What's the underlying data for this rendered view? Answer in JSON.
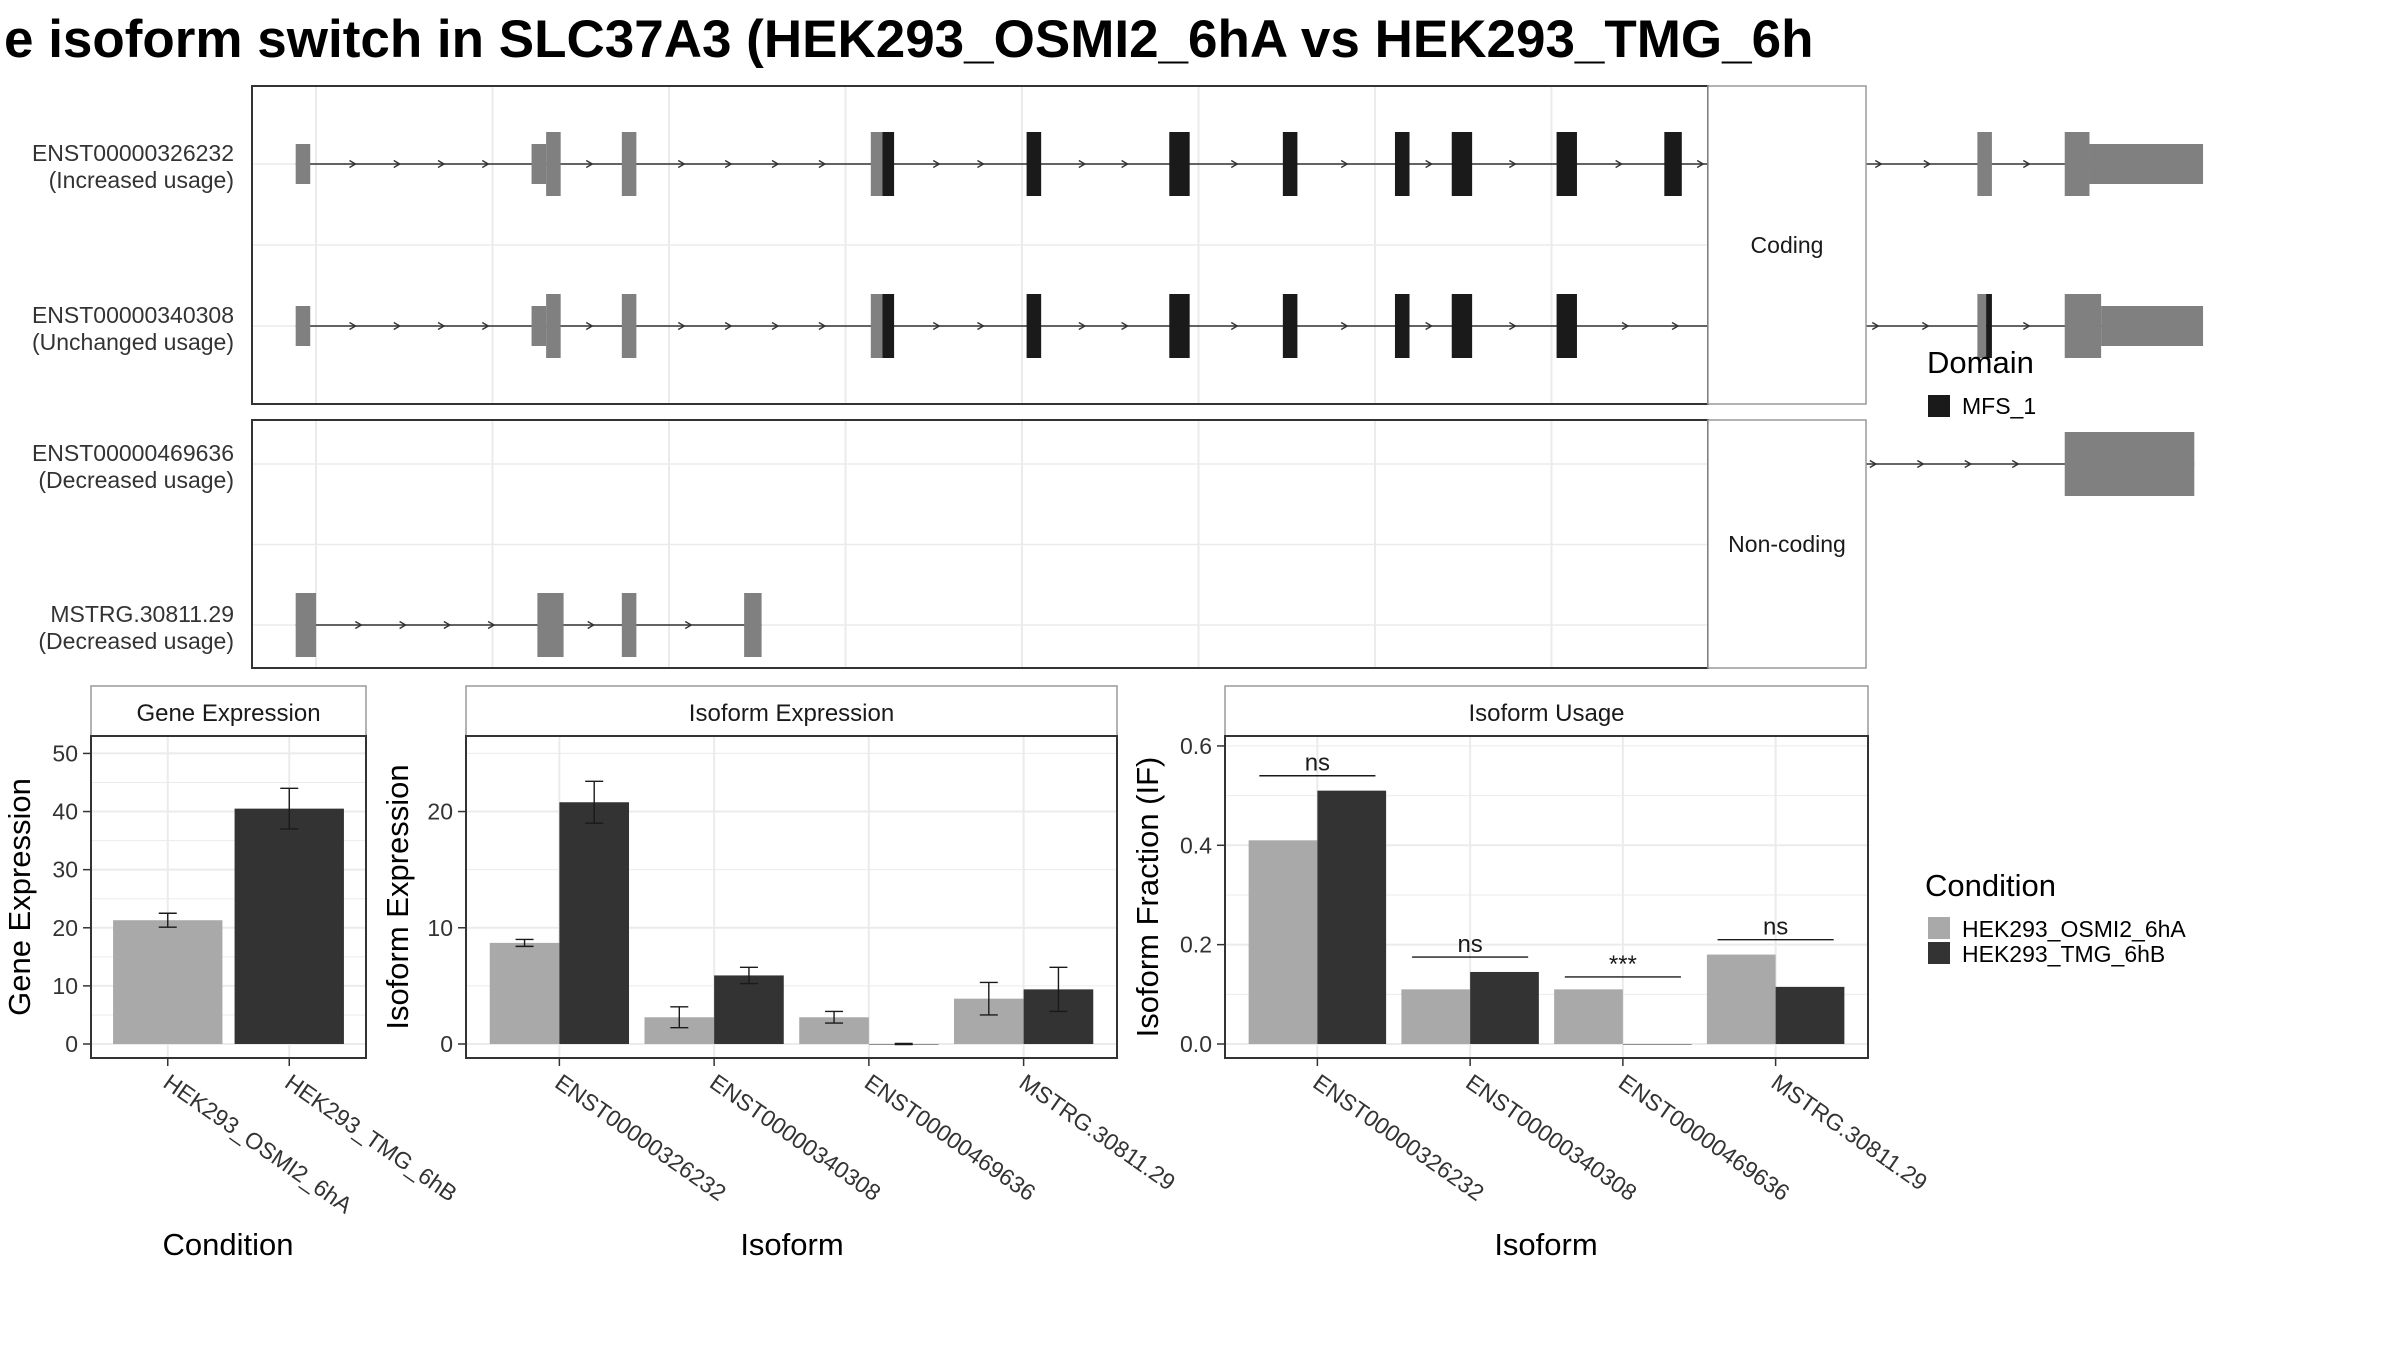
{
  "title": "e isoform switch in SLC37A3 (HEK293_OSMI2_6hA vs HEK293_TMG_6h",
  "colors": {
    "domain": "#1a1a1a",
    "exon": "#808080",
    "cond_a": "#a9a9a9",
    "cond_b": "#333333",
    "grid": "#ebebeb",
    "border": "#333333",
    "strip_border": "#9a9a9a"
  },
  "structure": {
    "genomic_min": 0,
    "genomic_max": 1000,
    "panels": [
      {
        "label": "Coding",
        "isoforms": [
          {
            "id": "ENST00000326232",
            "usage": "(Increased usage)",
            "exons": [
              {
                "s": 30,
                "e": 40,
                "h": "mid"
              },
              {
                "s": 192,
                "e": 202,
                "h": "mid"
              },
              {
                "s": 202,
                "e": 212,
                "h": "full"
              },
              {
                "s": 254,
                "e": 264,
                "h": "full"
              },
              {
                "s": 425,
                "e": 433,
                "h": "full"
              },
              {
                "s": 433,
                "e": 441,
                "h": "full",
                "d": true
              },
              {
                "s": 532,
                "e": 542,
                "h": "full",
                "d": true
              },
              {
                "s": 630,
                "e": 644,
                "h": "full",
                "d": true
              },
              {
                "s": 708,
                "e": 718,
                "h": "full",
                "d": true
              },
              {
                "s": 785,
                "e": 795,
                "h": "full",
                "d": true
              },
              {
                "s": 824,
                "e": 838,
                "h": "full",
                "d": true
              },
              {
                "s": 896,
                "e": 910,
                "h": "full",
                "d": true
              },
              {
                "s": 970,
                "e": 982,
                "h": "full",
                "d": true
              },
              {
                "s": 1010,
                "e": 1019,
                "h": "full",
                "d": true
              },
              {
                "s": 1066,
                "e": 1075,
                "h": "full",
                "d": true
              },
              {
                "s": 1075,
                "e": 1085,
                "h": "full"
              },
              {
                "s": 1185,
                "e": 1195,
                "h": "full"
              },
              {
                "s": 1245,
                "e": 1262,
                "h": "full"
              },
              {
                "s": 1262,
                "e": 1340,
                "h": "mid"
              }
            ]
          },
          {
            "id": "ENST00000340308",
            "usage": "(Unchanged usage)",
            "exons": [
              {
                "s": 30,
                "e": 40,
                "h": "mid"
              },
              {
                "s": 192,
                "e": 202,
                "h": "mid"
              },
              {
                "s": 202,
                "e": 212,
                "h": "full"
              },
              {
                "s": 254,
                "e": 264,
                "h": "full"
              },
              {
                "s": 425,
                "e": 433,
                "h": "full"
              },
              {
                "s": 433,
                "e": 441,
                "h": "full",
                "d": true
              },
              {
                "s": 532,
                "e": 542,
                "h": "full",
                "d": true
              },
              {
                "s": 630,
                "e": 644,
                "h": "full",
                "d": true
              },
              {
                "s": 708,
                "e": 718,
                "h": "full",
                "d": true
              },
              {
                "s": 785,
                "e": 795,
                "h": "full",
                "d": true
              },
              {
                "s": 824,
                "e": 838,
                "h": "full",
                "d": true
              },
              {
                "s": 896,
                "e": 910,
                "h": "full",
                "d": true
              },
              {
                "s": 1185,
                "e": 1191,
                "h": "full"
              },
              {
                "s": 1191,
                "e": 1195,
                "h": "full",
                "d": true
              },
              {
                "s": 1245,
                "e": 1270,
                "h": "full"
              },
              {
                "s": 1270,
                "e": 1340,
                "h": "mid"
              }
            ]
          }
        ]
      },
      {
        "label": "Non-coding",
        "isoforms": [
          {
            "id": "ENST00000469636",
            "usage": "(Decreased usage)",
            "exons": [
              {
                "s": 1064,
                "e": 1082,
                "h": "full"
              },
              {
                "s": 1245,
                "e": 1334,
                "h": "full"
              }
            ]
          },
          {
            "id": "MSTRG.30811.29",
            "usage": "(Decreased usage)",
            "exons": [
              {
                "s": 30,
                "e": 44,
                "h": "full"
              },
              {
                "s": 196,
                "e": 214,
                "h": "full"
              },
              {
                "s": 254,
                "e": 264,
                "h": "full"
              },
              {
                "s": 338,
                "e": 350,
                "h": "full"
              }
            ]
          }
        ]
      }
    ]
  },
  "legend_domain": {
    "title": "Domain",
    "items": [
      {
        "label": "MFS_1"
      }
    ]
  },
  "legend_condition": {
    "title": "Condition",
    "items": [
      {
        "label": "HEK293_OSMI2_6hA"
      },
      {
        "label": "HEK293_TMG_6hB"
      }
    ]
  },
  "chart_data": [
    {
      "type": "bar",
      "title": "Gene Expression",
      "xlabel": "Condition",
      "ylabel": "Gene Expression",
      "ylim": [
        0,
        53
      ],
      "yticks": [
        0,
        10,
        20,
        30,
        40,
        50
      ],
      "categories": [
        "HEK293_OSMI2_6hA",
        "HEK293_TMG_6hB"
      ],
      "series": [
        {
          "name": "HEK293_OSMI2_6hA",
          "values": [
            21.3,
            null
          ],
          "err": [
            1.2,
            null
          ]
        },
        {
          "name": "HEK293_TMG_6hB",
          "values": [
            null,
            40.5
          ],
          "err": [
            null,
            3.5
          ]
        }
      ]
    },
    {
      "type": "bar",
      "title": "Isoform Expression",
      "xlabel": "Isoform",
      "ylabel": "Isoform Expression",
      "ylim": [
        0,
        26.5
      ],
      "yticks": [
        0,
        10,
        20
      ],
      "categories": [
        "ENST00000326232",
        "ENST00000340308",
        "ENST00000469636",
        "MSTRG.30811.29"
      ],
      "series": [
        {
          "name": "HEK293_OSMI2_6hA",
          "values": [
            8.7,
            2.3,
            2.3,
            3.9
          ],
          "err": [
            0.3,
            0.9,
            0.5,
            1.4
          ]
        },
        {
          "name": "HEK293_TMG_6hB",
          "values": [
            20.8,
            5.9,
            0.0,
            4.7
          ],
          "err": [
            1.8,
            0.7,
            0.05,
            1.9
          ]
        }
      ]
    },
    {
      "type": "bar",
      "title": "Isoform Usage",
      "xlabel": "Isoform",
      "ylabel": "Isoform Fraction (IF)",
      "ylim": [
        0,
        0.62
      ],
      "yticks": [
        0.0,
        0.2,
        0.4,
        0.6
      ],
      "ytick_labels": [
        "0.0",
        "0.2",
        "0.4",
        "0.6"
      ],
      "categories": [
        "ENST00000326232",
        "ENST00000340308",
        "ENST00000469636",
        "MSTRG.30811.29"
      ],
      "series": [
        {
          "name": "HEK293_OSMI2_6hA",
          "values": [
            0.41,
            0.11,
            0.11,
            0.18
          ]
        },
        {
          "name": "HEK293_TMG_6hB",
          "values": [
            0.51,
            0.145,
            0.0,
            0.115
          ]
        }
      ],
      "significance": [
        {
          "label": "ns",
          "y": 0.54
        },
        {
          "label": "ns",
          "y": 0.175
        },
        {
          "label": "***",
          "y": 0.135
        },
        {
          "label": "ns",
          "y": 0.21
        }
      ]
    }
  ]
}
